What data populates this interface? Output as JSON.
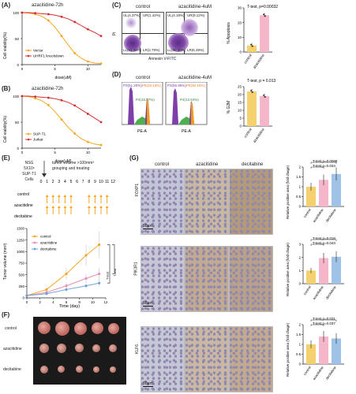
{
  "panels": {
    "A": {
      "label": "(A)",
      "title": "azacitidine-72h",
      "ylabel": "Cell viability(%)",
      "xlabel": "dose(uM)",
      "legend": [
        "Vector",
        "UHRF1 knockdown"
      ],
      "yticks": [
        "0",
        "50",
        "100"
      ],
      "xticks": [
        "0",
        "5",
        "10"
      ],
      "colors": [
        "#f5a623",
        "#d32f2f"
      ]
    },
    "B": {
      "label": "(B)",
      "title": "azacitidine-72h",
      "ylabel": "Cell viability(%)",
      "xlabel": "dose(uM)",
      "legend": [
        "SUP-T1",
        "Jurkat"
      ],
      "yticks": [
        "0",
        "50",
        "100"
      ],
      "xticks": [
        "0",
        "5",
        "10"
      ],
      "colors": [
        "#f5a623",
        "#d32f2f"
      ]
    },
    "C": {
      "label": "(C)",
      "col_titles": [
        "control",
        "azacitidine-4uM"
      ],
      "xlabel": "Annexin V-FITC",
      "ylabel": "PI",
      "quadrants": [
        [
          "UL(4.37%)",
          "UR(1.42%)",
          "LL(91.46%)",
          "LR(2.79%)"
        ],
        [
          "UL(4.19%)",
          "UR(9.12%)",
          "LL(80.30%)",
          "LR(6.39%)"
        ]
      ],
      "stat": "T-test, p=0.00032",
      "bar_ylabel": "% Apoptosis",
      "bar_categories": [
        "control",
        "azacitidine"
      ],
      "bar_yticks": [
        "0",
        "10",
        "20",
        "30"
      ]
    },
    "D": {
      "label": "(D)",
      "col_titles": [
        "control",
        "azacitidine-4uM"
      ],
      "xlabel": "PE-A",
      "gates": [
        [
          "P3(51.20%)",
          "P5(33.13%)",
          "P4(16.07%)"
        ],
        [
          "P3(55.96%)",
          "P5(30.10%)",
          "P4(13.94%)"
        ]
      ],
      "stat": "T-test, p = 0.013",
      "bar_ylabel": "% G2M",
      "bar_categories": [
        "control",
        "azacitidine"
      ],
      "bar_yticks": [
        "0",
        "5",
        "10",
        "15",
        "20",
        "25"
      ]
    },
    "E": {
      "label": "(E)",
      "model": [
        "NSG",
        "5X10⁶",
        "SUP-T1 Cells"
      ],
      "schedule_title": [
        "tumor volume >100mm³",
        "grouping and treating"
      ],
      "days": [
        "0",
        "1",
        "2",
        "3",
        "4",
        "5",
        "6",
        "7",
        "8",
        "9",
        "10",
        "11",
        "12"
      ],
      "rows": [
        "control",
        "azacitidine",
        "decitabine"
      ],
      "chart_ylabel": "Tumor volume (mm³)",
      "chart_xlabel": "Time (day)",
      "legend": [
        "control",
        "azacitidine",
        "decitabine"
      ],
      "yticks": [
        "0",
        "250",
        "500",
        "750",
        "1000",
        "1250",
        "1500"
      ],
      "xticks": [
        "0",
        "2",
        "4",
        "6",
        "8",
        "10",
        "12"
      ],
      "bracket": [
        "T-test",
        "T-test"
      ]
    },
    "F": {
      "label": "(F)",
      "rows": [
        "control",
        "azacitidine",
        "decitabine"
      ]
    },
    "G": {
      "label": "(G)",
      "col_titles": [
        "control",
        "azacitidine",
        "decitabine"
      ],
      "rows": [
        "FOXP1",
        "PIK3R1",
        "KLF6"
      ],
      "scale": "50μm",
      "bar_ylabel": "Relative positive area (fold chage)",
      "bar_categories": [
        "control",
        "azacitidine",
        "decitabine"
      ],
      "stats": [
        [
          "T-test,p=0.0088",
          "T-test,p=0.034"
        ],
        [
          "T-test,p=0.018",
          "T-test,p=0.043"
        ],
        [
          "T-test,p=0.031",
          "T-test,p=0.037"
        ]
      ]
    }
  },
  "chart_data": [
    {
      "type": "line",
      "id": "A",
      "x": [
        0,
        1,
        2,
        3,
        4,
        5,
        6,
        7,
        8,
        9,
        10,
        11,
        12
      ],
      "series": [
        {
          "name": "Vector",
          "values": [
            100,
            99,
            97,
            93,
            85,
            72,
            55,
            38,
            22,
            12,
            6,
            3,
            2
          ]
        },
        {
          "name": "UHRF1 knockdown",
          "values": [
            100,
            100,
            99,
            98,
            97,
            95,
            92,
            88,
            82,
            75,
            68,
            62,
            55
          ]
        }
      ],
      "ylim": [
        0,
        100
      ],
      "xlim": [
        0,
        12
      ]
    },
    {
      "type": "line",
      "id": "B",
      "x": [
        0,
        1,
        2,
        3,
        4,
        5,
        6,
        7,
        8,
        9,
        10,
        11,
        12
      ],
      "series": [
        {
          "name": "SUP-T1",
          "values": [
            100,
            99,
            96,
            91,
            83,
            70,
            55,
            40,
            28,
            18,
            12,
            8,
            6
          ]
        },
        {
          "name": "Jurkat",
          "values": [
            100,
            100,
            99,
            98,
            97,
            95,
            92,
            88,
            82,
            74,
            66,
            58,
            50
          ]
        }
      ],
      "ylim": [
        0,
        100
      ],
      "xlim": [
        0,
        12
      ]
    },
    {
      "type": "bar",
      "id": "C",
      "categories": [
        "control",
        "azacitidine"
      ],
      "values": [
        4.5,
        25
      ],
      "ylim": [
        0,
        30
      ],
      "colors": [
        "#f5d06e",
        "#f4b6c8"
      ]
    },
    {
      "type": "bar",
      "id": "D",
      "categories": [
        "control",
        "azacitidine"
      ],
      "values": [
        22,
        19
      ],
      "ylim": [
        0,
        25
      ],
      "colors": [
        "#f5d06e",
        "#f4b6c8"
      ]
    },
    {
      "type": "line",
      "id": "E",
      "x": [
        0,
        3,
        6,
        9,
        11
      ],
      "series": [
        {
          "name": "control",
          "values": [
            50,
            180,
            520,
            920,
            1150
          ],
          "color": "#f5a623"
        },
        {
          "name": "azacitidine",
          "values": [
            50,
            120,
            260,
            420,
            520
          ],
          "color": "#e58fb3"
        },
        {
          "name": "decitabine",
          "values": [
            50,
            90,
            180,
            260,
            320
          ],
          "color": "#6fa3d8"
        }
      ],
      "ylim": [
        0,
        1500
      ],
      "xlim": [
        0,
        12
      ]
    },
    {
      "type": "bar",
      "id": "G1",
      "categories": [
        "control",
        "azacitidine",
        "decitabine"
      ],
      "values": [
        1.0,
        1.35,
        1.65
      ],
      "ylim": [
        0,
        2
      ]
    },
    {
      "type": "bar",
      "id": "G2",
      "categories": [
        "control",
        "azacitidine",
        "decitabine"
      ],
      "values": [
        1.0,
        1.95,
        2.05
      ],
      "ylim": [
        0,
        3
      ]
    },
    {
      "type": "bar",
      "id": "G3",
      "categories": [
        "control",
        "azacitidine",
        "decitabine"
      ],
      "values": [
        1.0,
        1.4,
        1.3
      ],
      "ylim": [
        0,
        2
      ]
    }
  ]
}
